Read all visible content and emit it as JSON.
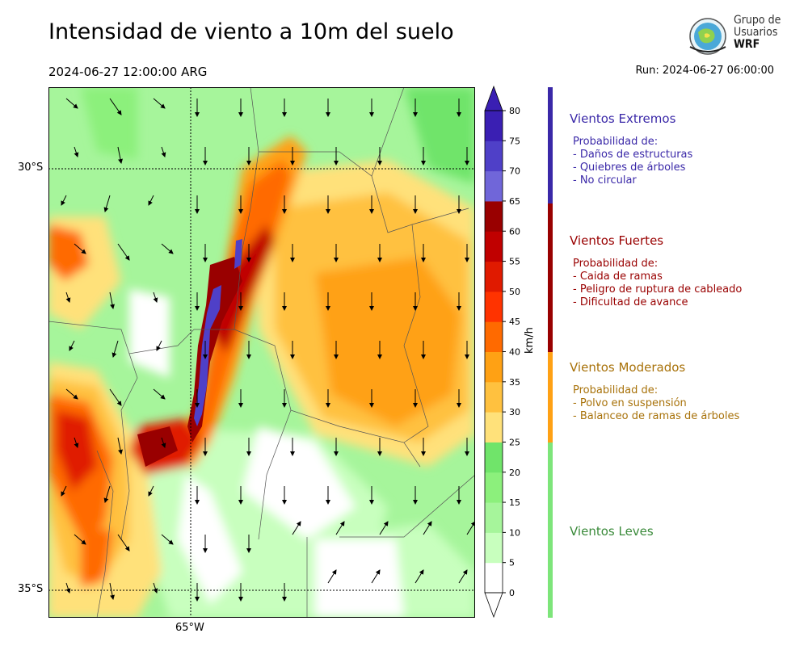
{
  "header": {
    "title": "Intensidad de viento a 10m del suelo",
    "valid_time": "2024-06-27 12:00:00 ARG",
    "run": "Run: 2024-06-27 06:00:00"
  },
  "logo": {
    "line1": "Grupo de",
    "line2": "Usuarios",
    "line3": "WRF"
  },
  "map": {
    "lat_labels": [
      "30°S",
      "35°S"
    ],
    "lon_labels": [
      "65°W"
    ]
  },
  "colorbar": {
    "unit": "km/h",
    "ticks": [
      "0",
      "5",
      "10",
      "15",
      "20",
      "25",
      "30",
      "35",
      "40",
      "45",
      "50",
      "55",
      "60",
      "65",
      "70",
      "75",
      "80"
    ],
    "colors": [
      "#ffffff",
      "#c8ffbe",
      "#a6f59b",
      "#8cf07c",
      "#70e46a",
      "#ffe17a",
      "#ffc13f",
      "#ffa114",
      "#ff6a00",
      "#ff3300",
      "#e01a00",
      "#c00000",
      "#990000",
      "#7066d9",
      "#4f40c8",
      "#3a1fb3",
      "#3a1fb3"
    ]
  },
  "categories": [
    {
      "title": "Vientos Extremos",
      "color": "#3a28a8",
      "lines": [
        "Probabilidad de:",
        "- Daños de estructuras",
        "- Quiebres de árboles",
        "- No circular"
      ]
    },
    {
      "title": "Vientos Fuertes",
      "color": "#990000",
      "lines": [
        "Probabilidad de:",
        "- Caida de ramas",
        "- Peligro de ruptura de cableado",
        "- Dificultad de avance"
      ]
    },
    {
      "title": "Vientos Moderados",
      "color": "#a8720a",
      "lines": [
        "Probabilidad de:",
        "- Polvo en suspensión",
        "- Balanceo de ramas de árboles"
      ]
    },
    {
      "title": "Vientos Leves",
      "color": "#3a8a3a",
      "lines": []
    }
  ],
  "category_bar_colors": [
    "#3a28a8",
    "#990000",
    "#ffa114",
    "#7de57a"
  ]
}
